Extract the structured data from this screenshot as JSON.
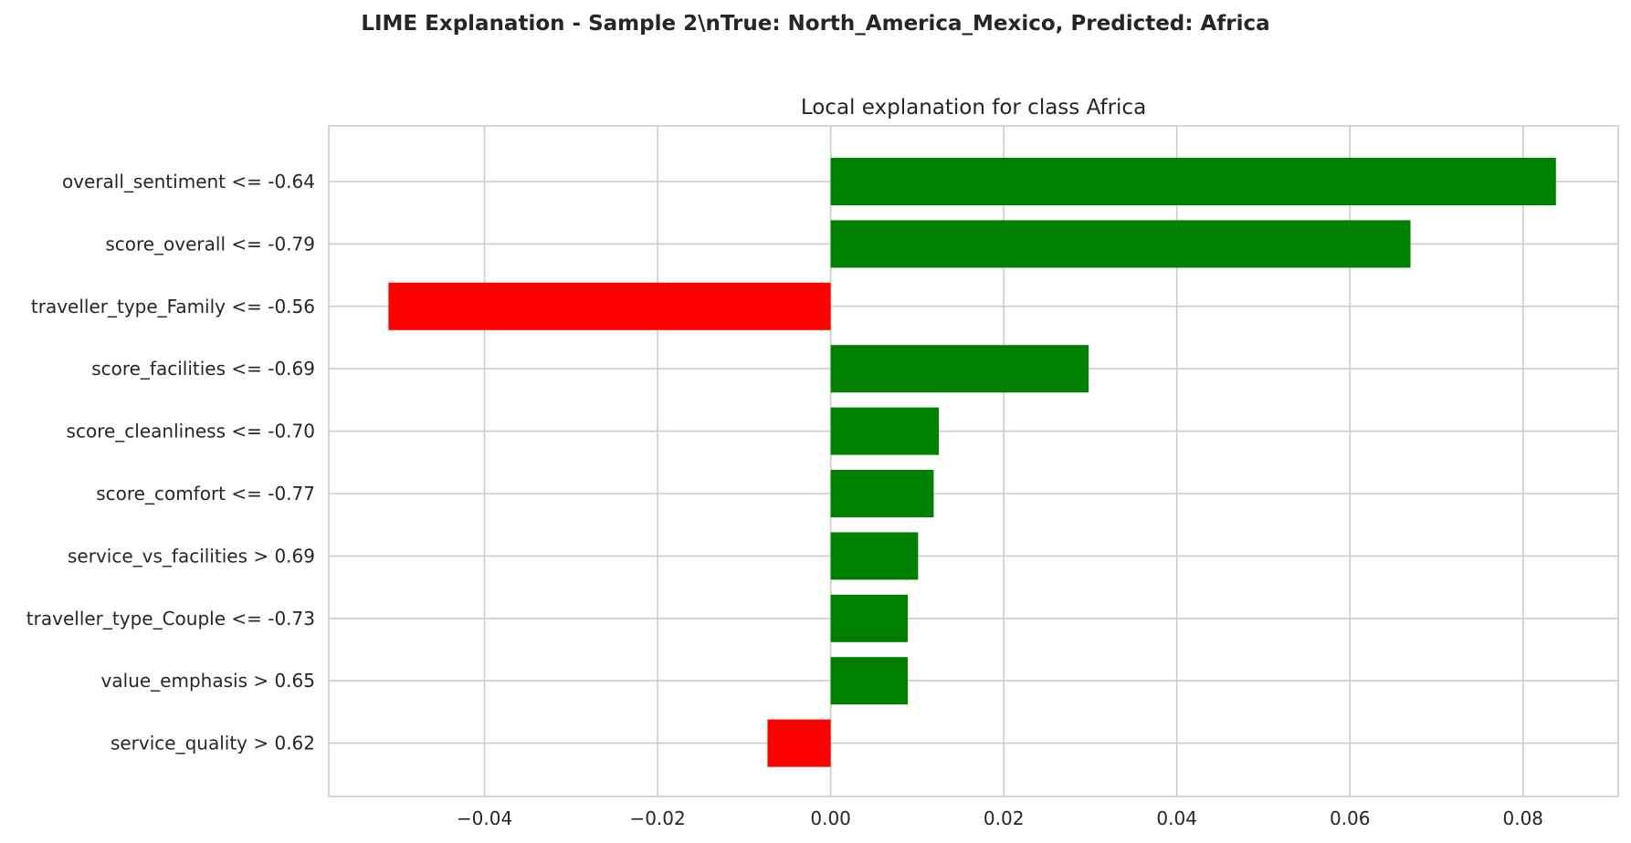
{
  "figure": {
    "suptitle": "LIME Explanation - Sample 2\\nTrue: North_America_Mexico, Predicted: Africa"
  },
  "chart_data": {
    "type": "bar",
    "orientation": "horizontal",
    "title": "Local explanation for class Africa",
    "xlabel": "",
    "ylabel": "",
    "categories": [
      "overall_sentiment <= -0.64",
      "score_overall <= -0.79",
      "traveller_type_Family <= -0.56",
      "score_facilities <= -0.69",
      "score_cleanliness <= -0.70",
      "score_comfort <= -0.77",
      "service_vs_facilities > 0.69",
      "traveller_type_Couple <= -0.73",
      "value_emphasis > 0.65",
      "service_quality > 0.62"
    ],
    "values": [
      0.0838,
      0.067,
      -0.0511,
      0.0298,
      0.0125,
      0.0119,
      0.0101,
      0.0089,
      0.0089,
      -0.0073
    ],
    "xlim": [
      -0.058,
      0.091
    ],
    "xticks": [
      -0.04,
      -0.02,
      0.0,
      0.02,
      0.04,
      0.06,
      0.08
    ],
    "xtick_labels": [
      "−0.04",
      "−0.02",
      "0.00",
      "0.02",
      "0.04",
      "0.06",
      "0.08"
    ],
    "grid": true,
    "colors": {
      "positive": "#008000",
      "negative": "#ff0000",
      "grid": "#cccccc",
      "text": "#262626"
    }
  }
}
